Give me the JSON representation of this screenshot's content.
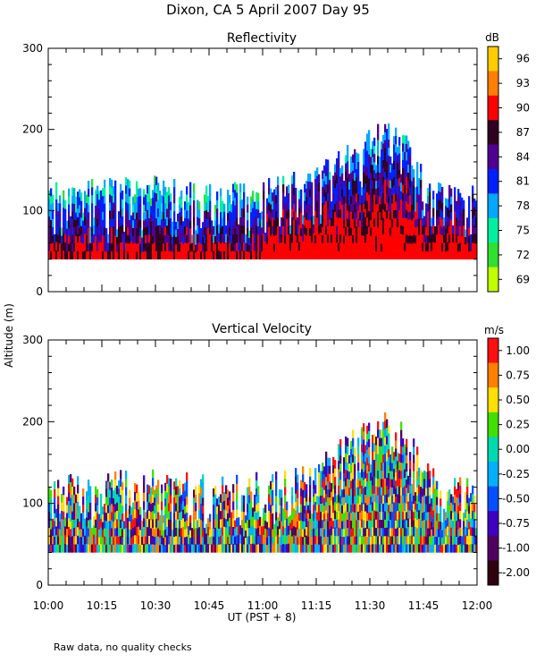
{
  "figure": {
    "title": "Dixon, CA  5 April 2007  Day  95",
    "ylabel": "Altitude (m)",
    "xlabel": "UT  (PST + 8)",
    "note": "Raw data, no quality checks",
    "x_ticks": [
      "10:00",
      "10:15",
      "10:30",
      "10:45",
      "11:00",
      "11:15",
      "11:30",
      "11:45",
      "12:00"
    ]
  },
  "chart_data": [
    {
      "type": "heatmap",
      "title": "Reflectivity",
      "units": "dB",
      "x_range": [
        0,
        120
      ],
      "x_unit": "minutes after 10:00 UT",
      "ylim": [
        0,
        300
      ],
      "y_ticks": [
        "0",
        "100",
        "200",
        "300"
      ],
      "colorbar": {
        "labels": [
          "96",
          "93",
          "90",
          "87",
          "84",
          "81",
          "78",
          "75",
          "72",
          "69"
        ],
        "colors": [
          "#ffcc00",
          "#ff8000",
          "#ff0000",
          "#300020",
          "#500090",
          "#0020ff",
          "#00a8ff",
          "#00f0a0",
          "#30e030",
          "#c0ff00"
        ]
      },
      "echo_base_m": 40,
      "echo_top_profile": {
        "minutes": [
          0,
          15,
          30,
          45,
          60,
          75,
          85,
          90,
          95,
          100,
          105,
          110,
          120
        ],
        "top_m": [
          120,
          125,
          130,
          120,
          125,
          140,
          175,
          190,
          200,
          185,
          140,
          120,
          120
        ]
      }
    },
    {
      "type": "heatmap",
      "title": "Vertical Velocity",
      "units": "m/s",
      "x_range": [
        0,
        120
      ],
      "x_unit": "minutes after 10:00 UT",
      "ylim": [
        0,
        300
      ],
      "y_ticks": [
        "0",
        "100",
        "200",
        "300"
      ],
      "colorbar": {
        "labels": [
          "1.00",
          "0.75",
          "0.50",
          "0.25",
          "0.00",
          "-0.25",
          "-0.50",
          "-0.75",
          "-1.00",
          "-2.00"
        ],
        "colors": [
          "#ff1010",
          "#ff8000",
          "#ffe000",
          "#40e000",
          "#00d8b0",
          "#00b0ff",
          "#0050ff",
          "#4000c0",
          "#500060",
          "#300010"
        ]
      },
      "echo_base_m": 40,
      "echo_top_profile": {
        "minutes": [
          0,
          15,
          30,
          45,
          60,
          75,
          85,
          90,
          95,
          100,
          105,
          110,
          120
        ],
        "top_m": [
          120,
          125,
          130,
          120,
          125,
          140,
          175,
          190,
          200,
          185,
          140,
          120,
          120
        ]
      }
    }
  ]
}
